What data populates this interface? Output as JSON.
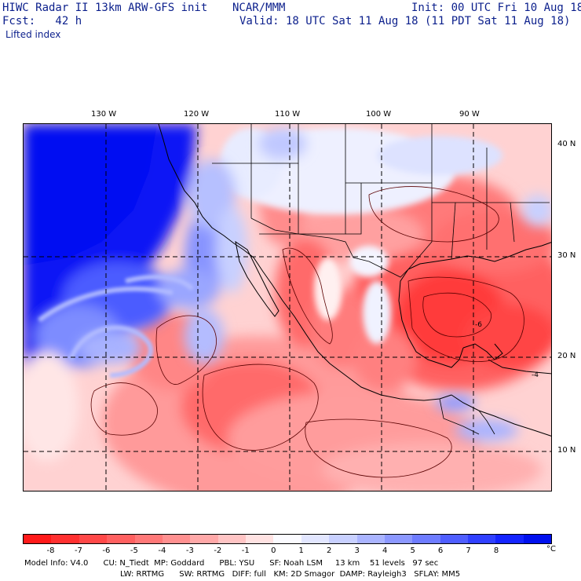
{
  "header": {
    "title": "HIWC Radar II 13km ARW-GFS init",
    "org": "NCAR/MMM",
    "init": "Init: 00 UTC Fri 10 Aug 18",
    "fcst": "Fcst:   42 h",
    "valid": "Valid: 18 UTC Sat 11 Aug 18 (11 PDT Sat 11 Aug 18)",
    "field": "Lifted index"
  },
  "map": {
    "lon_labels": [
      "130 W",
      "120 W",
      "110 W",
      "100 W",
      "90 W"
    ],
    "lat_labels": [
      "40 N",
      "30 N",
      "20 N",
      "10 N"
    ],
    "contour_labels": [
      "-6",
      "-4"
    ]
  },
  "colorbar": {
    "labels": [
      "-8",
      "-7",
      "-6",
      "-5",
      "-4",
      "-3",
      "-2",
      "-1",
      "0",
      "1",
      "2",
      "3",
      "4",
      "5",
      "6",
      "7",
      "8"
    ],
    "unit": "°C",
    "colors": [
      "#ff1a1a",
      "#ff3030",
      "#ff4848",
      "#ff6060",
      "#ff7878",
      "#ff9090",
      "#ffa8a8",
      "#ffc4c4",
      "#ffe2e2",
      "#fbfbff",
      "#e2e6ff",
      "#c8d0ff",
      "#aab4ff",
      "#8c98ff",
      "#6e7cff",
      "#4f5eff",
      "#3040ff",
      "#1424ff",
      "#0010ee"
    ]
  },
  "model_info": {
    "line1": "Model Info: V4.0      CU: N_Tiedt  MP: Goddard      PBL: YSU      SF: Noah LSM     13 km    51 levels   97 sec",
    "line2": "LW: RRTMG      SW: RRTMG   DIFF: full   KM: 2D Smagor  DAMP: Rayleigh3   SFLAY: MM5"
  },
  "colors": {
    "header_text": "#0b1f8c",
    "deep_blue": "#0a14f5",
    "red": "#ff3a3a"
  }
}
